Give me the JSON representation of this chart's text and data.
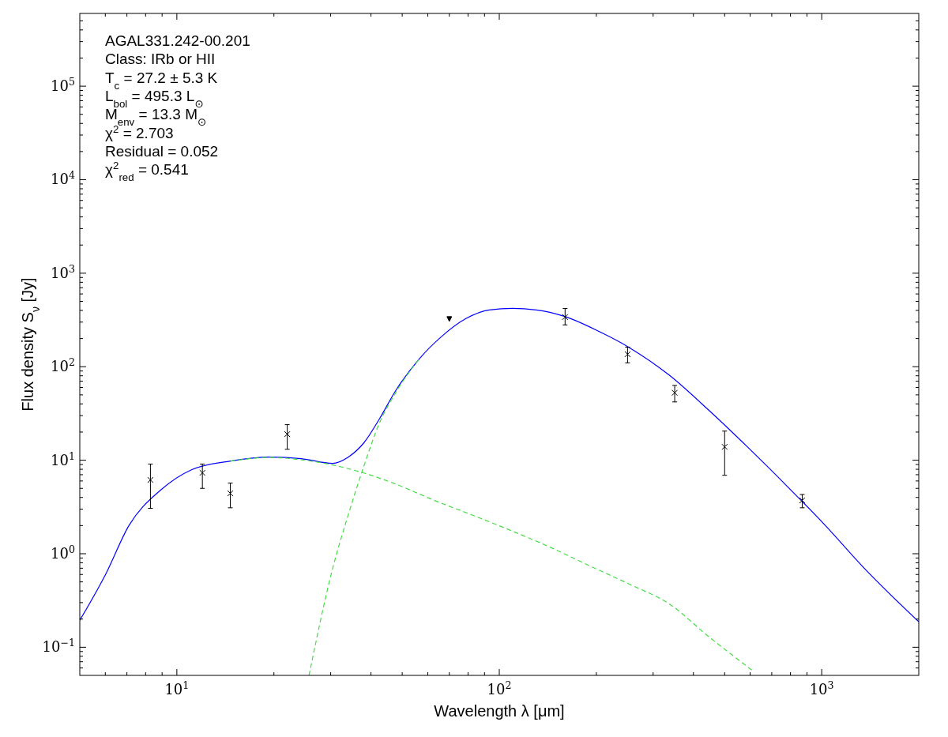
{
  "chart_data": {
    "type": "scatter",
    "xlabel": "Wavelength λ [μm]",
    "ylabel": "Flux density S$_{ν}$ [Jy]",
    "xlim": [
      5,
      2000
    ],
    "ylim": [
      0.05,
      600000
    ],
    "log": "xy",
    "grid": false,
    "xticks": [
      {
        "value": 10,
        "label": "10$^{1}$"
      },
      {
        "value": 100,
        "label": "10$^{2}$"
      },
      {
        "value": 1000,
        "label": "10$^{3}$"
      }
    ],
    "yticks": [
      {
        "value": 0.1,
        "label": "10$^{−1}$"
      },
      {
        "value": 1,
        "label": "10$^{0}$"
      },
      {
        "value": 10,
        "label": "10$^{1}$"
      },
      {
        "value": 100,
        "label": "10$^{2}$"
      },
      {
        "value": 1000,
        "label": "10$^{3}$"
      },
      {
        "value": 10000,
        "label": "10$^{4}$"
      },
      {
        "value": 100000,
        "label": "10$^{5}$"
      }
    ],
    "annotations": [
      "AGAL331.242-00.201",
      "Class: IRb or HII",
      "T$_{c}$ = 27.2 ± 5.3 K",
      "L$_{bol}$ = 495.3 L$_{⊙}$",
      "M$_{env}$ = 13.3 M$_{⊙}$",
      "χ$^{2}$ = 2.703",
      "Residual = 0.052",
      "χ$^{2}$$_{red}$ = 0.541"
    ],
    "series": [
      {
        "type": "line",
        "color": "#0000ff",
        "line_style": "solid",
        "x": [
          5,
          6.01,
          7.1,
          8.9,
          11.1,
          14.7,
          19.4,
          24.3,
          30.4,
          34,
          38,
          42.5,
          47.6,
          56.2,
          66.5,
          78.8,
          93.2,
          110,
          130,
          159,
          203,
          254,
          337,
          445,
          588,
          777,
          1027,
          1355,
          2000
        ],
        "values": [
          0.194,
          0.6,
          2.0,
          4.78,
          7.9,
          9.8,
          10.8,
          10.4,
          9.25,
          10.8,
          15.3,
          27.7,
          54.7,
          119,
          213,
          327,
          405,
          420,
          405,
          346,
          240,
          159,
          81,
          34.6,
          13.9,
          5.37,
          2.0,
          0.7,
          0.187
        ]
      },
      {
        "type": "line",
        "color": "#44dd44",
        "line_style": "dashed",
        "x": [
          25.7,
          30.4,
          34,
          38,
          42.5,
          47.6,
          56.2
        ],
        "values": [
          0.05,
          0.69,
          2.6,
          8.6,
          25,
          52,
          119
        ]
      },
      {
        "type": "line",
        "color": "#44dd44",
        "line_style": "dashed",
        "x": [
          14.7,
          19.4,
          24.3,
          30.4,
          38,
          47.6,
          63,
          83,
          110,
          145,
          191,
          254,
          337,
          445,
          607
        ],
        "values": [
          9.8,
          10.7,
          10.1,
          8.9,
          7.3,
          5.58,
          3.71,
          2.57,
          1.74,
          1.16,
          0.74,
          0.47,
          0.29,
          0.131,
          0.057
        ]
      },
      {
        "color": "#000000",
        "marker": "cross",
        "x": [
          8.28,
          12,
          14.65,
          22,
          160,
          250,
          350,
          500,
          870
        ],
        "values": [
          6.15,
          7.33,
          4.42,
          19,
          340,
          136,
          52.6,
          13.9,
          3.71
        ],
        "errors": [
          [
            3.06,
            9.1
          ],
          [
            5.0,
            9.1
          ],
          [
            3.1,
            5.7
          ],
          [
            13.1,
            24
          ],
          [
            280,
            420
          ],
          [
            110,
            162
          ],
          [
            42,
            63
          ],
          [
            6.9,
            20.5
          ],
          [
            3.1,
            4.3
          ]
        ]
      },
      {
        "color": "#000000",
        "marker": "triangle",
        "x": [
          70
        ],
        "values": [
          330
        ]
      }
    ]
  }
}
